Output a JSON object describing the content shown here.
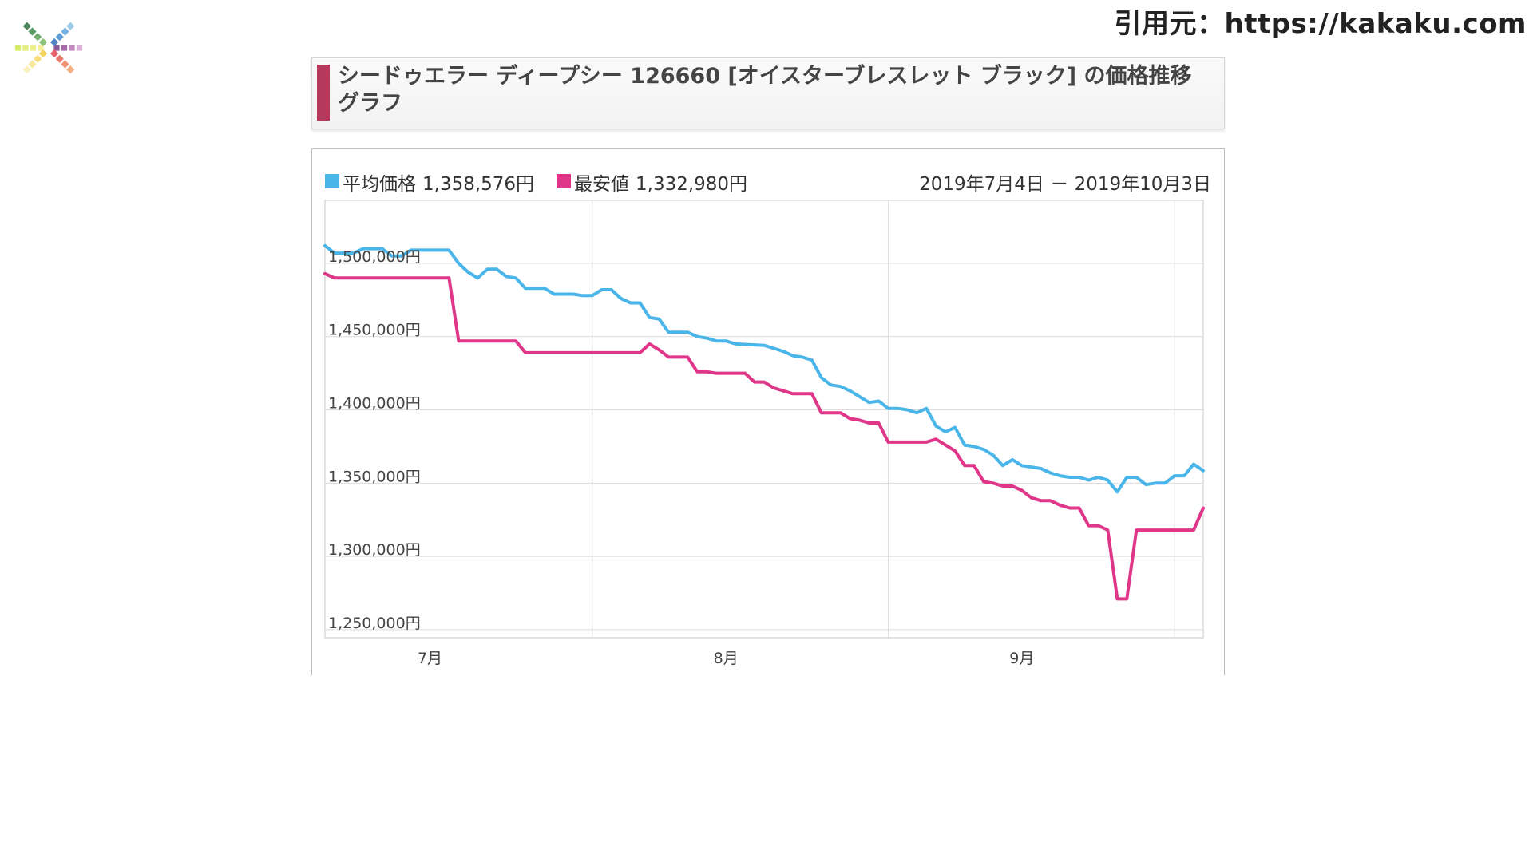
{
  "source_label": "引用元：https://kakaku.com",
  "title": "シードゥエラー ディープシー 126660 [オイスターブレスレット ブラック] の価格推移グラフ",
  "legend": [
    {
      "name": "平均価格",
      "value": "1,358,576円",
      "color": "#4ab5e8"
    },
    {
      "name": "最安値",
      "value": "1,332,980円",
      "color": "#e0368a"
    }
  ],
  "date_range": {
    "start": "2019年7月4日",
    "sep": "－",
    "end": "2019年10月3日"
  },
  "chart_data": {
    "type": "line",
    "y_tick_labels": [
      "1,500,000円",
      "1,450,000円",
      "1,400,000円",
      "1,350,000円",
      "1,300,000円",
      "1,250,000円"
    ],
    "y_ticks": [
      1500000,
      1450000,
      1400000,
      1350000,
      1300000,
      1250000
    ],
    "x_tick_labels": [
      "7月",
      "8月",
      "9月"
    ],
    "ylim": [
      1244500,
      1543000
    ],
    "grid": true,
    "series": [
      {
        "name": "平均価格",
        "color": "#4ab5e8",
        "points": [
          [
            "2019-07-04",
            1512000
          ],
          [
            "2019-07-05",
            1507000
          ],
          [
            "2019-07-07",
            1507000
          ],
          [
            "2019-07-08",
            1510000
          ],
          [
            "2019-07-10",
            1510000
          ],
          [
            "2019-07-11",
            1505000
          ],
          [
            "2019-07-12",
            1505000
          ],
          [
            "2019-07-13",
            1509000
          ],
          [
            "2019-07-17",
            1509000
          ],
          [
            "2019-07-18",
            1500000
          ],
          [
            "2019-07-19",
            1494000
          ],
          [
            "2019-07-20",
            1490000
          ],
          [
            "2019-07-21",
            1496000
          ],
          [
            "2019-07-22",
            1496000
          ],
          [
            "2019-07-23",
            1491000
          ],
          [
            "2019-07-24",
            1490000
          ],
          [
            "2019-07-25",
            1483000
          ],
          [
            "2019-07-27",
            1483000
          ],
          [
            "2019-07-28",
            1479000
          ],
          [
            "2019-07-30",
            1479000
          ],
          [
            "2019-07-31",
            1478000
          ],
          [
            "2019-08-01",
            1478000
          ],
          [
            "2019-08-02",
            1482000
          ],
          [
            "2019-08-03",
            1482000
          ],
          [
            "2019-08-04",
            1476000
          ],
          [
            "2019-08-05",
            1473000
          ],
          [
            "2019-08-06",
            1473000
          ],
          [
            "2019-08-07",
            1463000
          ],
          [
            "2019-08-08",
            1462000
          ],
          [
            "2019-08-09",
            1453000
          ],
          [
            "2019-08-11",
            1453000
          ],
          [
            "2019-08-12",
            1450000
          ],
          [
            "2019-08-13",
            1449000
          ],
          [
            "2019-08-14",
            1447000
          ],
          [
            "2019-08-15",
            1447000
          ],
          [
            "2019-08-16",
            1445000
          ],
          [
            "2019-08-19",
            1444000
          ],
          [
            "2019-08-20",
            1442000
          ],
          [
            "2019-08-21",
            1440000
          ],
          [
            "2019-08-22",
            1437000
          ],
          [
            "2019-08-23",
            1436000
          ],
          [
            "2019-08-24",
            1434000
          ],
          [
            "2019-08-25",
            1422000
          ],
          [
            "2019-08-26",
            1417000
          ],
          [
            "2019-08-27",
            1416000
          ],
          [
            "2019-08-28",
            1413000
          ],
          [
            "2019-08-29",
            1409000
          ],
          [
            "2019-08-30",
            1405000
          ],
          [
            "2019-08-31",
            1406000
          ],
          [
            "2019-09-01",
            1401000
          ],
          [
            "2019-09-02",
            1401000
          ],
          [
            "2019-09-03",
            1400000
          ],
          [
            "2019-09-04",
            1398000
          ],
          [
            "2019-09-05",
            1401000
          ],
          [
            "2019-09-06",
            1389000
          ],
          [
            "2019-09-07",
            1385000
          ],
          [
            "2019-09-08",
            1388000
          ],
          [
            "2019-09-09",
            1376000
          ],
          [
            "2019-09-10",
            1375000
          ],
          [
            "2019-09-11",
            1373000
          ],
          [
            "2019-09-12",
            1369000
          ],
          [
            "2019-09-13",
            1362000
          ],
          [
            "2019-09-14",
            1366000
          ],
          [
            "2019-09-15",
            1362000
          ],
          [
            "2019-09-17",
            1360000
          ],
          [
            "2019-09-18",
            1357000
          ],
          [
            "2019-09-19",
            1355000
          ],
          [
            "2019-09-20",
            1354000
          ],
          [
            "2019-09-21",
            1354000
          ],
          [
            "2019-09-22",
            1352000
          ],
          [
            "2019-09-23",
            1354000
          ],
          [
            "2019-09-24",
            1352000
          ],
          [
            "2019-09-25",
            1344000
          ],
          [
            "2019-09-26",
            1354000
          ],
          [
            "2019-09-27",
            1354000
          ],
          [
            "2019-09-28",
            1349000
          ],
          [
            "2019-09-29",
            1350000
          ],
          [
            "2019-09-30",
            1350000
          ],
          [
            "2019-10-01",
            1355000
          ],
          [
            "2019-10-02",
            1355000
          ],
          [
            "2019-10-03",
            1363000
          ],
          [
            "2019-10-04",
            1358576
          ]
        ]
      },
      {
        "name": "最安値",
        "color": "#e0368a",
        "points": [
          [
            "2019-07-04",
            1493000
          ],
          [
            "2019-07-05",
            1490000
          ],
          [
            "2019-07-17",
            1490000
          ],
          [
            "2019-07-18",
            1447000
          ],
          [
            "2019-07-24",
            1447000
          ],
          [
            "2019-07-25",
            1439000
          ],
          [
            "2019-08-06",
            1439000
          ],
          [
            "2019-08-07",
            1445000
          ],
          [
            "2019-08-08",
            1441000
          ],
          [
            "2019-08-09",
            1436000
          ],
          [
            "2019-08-11",
            1436000
          ],
          [
            "2019-08-12",
            1426000
          ],
          [
            "2019-08-13",
            1426000
          ],
          [
            "2019-08-14",
            1425000
          ],
          [
            "2019-08-17",
            1425000
          ],
          [
            "2019-08-18",
            1419000
          ],
          [
            "2019-08-19",
            1419000
          ],
          [
            "2019-08-20",
            1415000
          ],
          [
            "2019-08-22",
            1411000
          ],
          [
            "2019-08-24",
            1411000
          ],
          [
            "2019-08-25",
            1398000
          ],
          [
            "2019-08-27",
            1398000
          ],
          [
            "2019-08-28",
            1394000
          ],
          [
            "2019-08-29",
            1393000
          ],
          [
            "2019-08-30",
            1391000
          ],
          [
            "2019-08-31",
            1391000
          ],
          [
            "2019-09-01",
            1378000
          ],
          [
            "2019-09-05",
            1378000
          ],
          [
            "2019-09-06",
            1380000
          ],
          [
            "2019-09-07",
            1376000
          ],
          [
            "2019-09-08",
            1372000
          ],
          [
            "2019-09-09",
            1362000
          ],
          [
            "2019-09-10",
            1362000
          ],
          [
            "2019-09-11",
            1351000
          ],
          [
            "2019-09-12",
            1350000
          ],
          [
            "2019-09-13",
            1348000
          ],
          [
            "2019-09-14",
            1348000
          ],
          [
            "2019-09-15",
            1345000
          ],
          [
            "2019-09-16",
            1340000
          ],
          [
            "2019-09-17",
            1338000
          ],
          [
            "2019-09-18",
            1338000
          ],
          [
            "2019-09-19",
            1335000
          ],
          [
            "2019-09-20",
            1333000
          ],
          [
            "2019-09-21",
            1333000
          ],
          [
            "2019-09-22",
            1321000
          ],
          [
            "2019-09-23",
            1321000
          ],
          [
            "2019-09-24",
            1318000
          ],
          [
            "2019-09-25",
            1271000
          ],
          [
            "2019-09-26",
            1271000
          ],
          [
            "2019-09-27",
            1318000
          ],
          [
            "2019-10-03",
            1318000
          ],
          [
            "2019-10-04",
            1332980
          ]
        ]
      }
    ]
  }
}
